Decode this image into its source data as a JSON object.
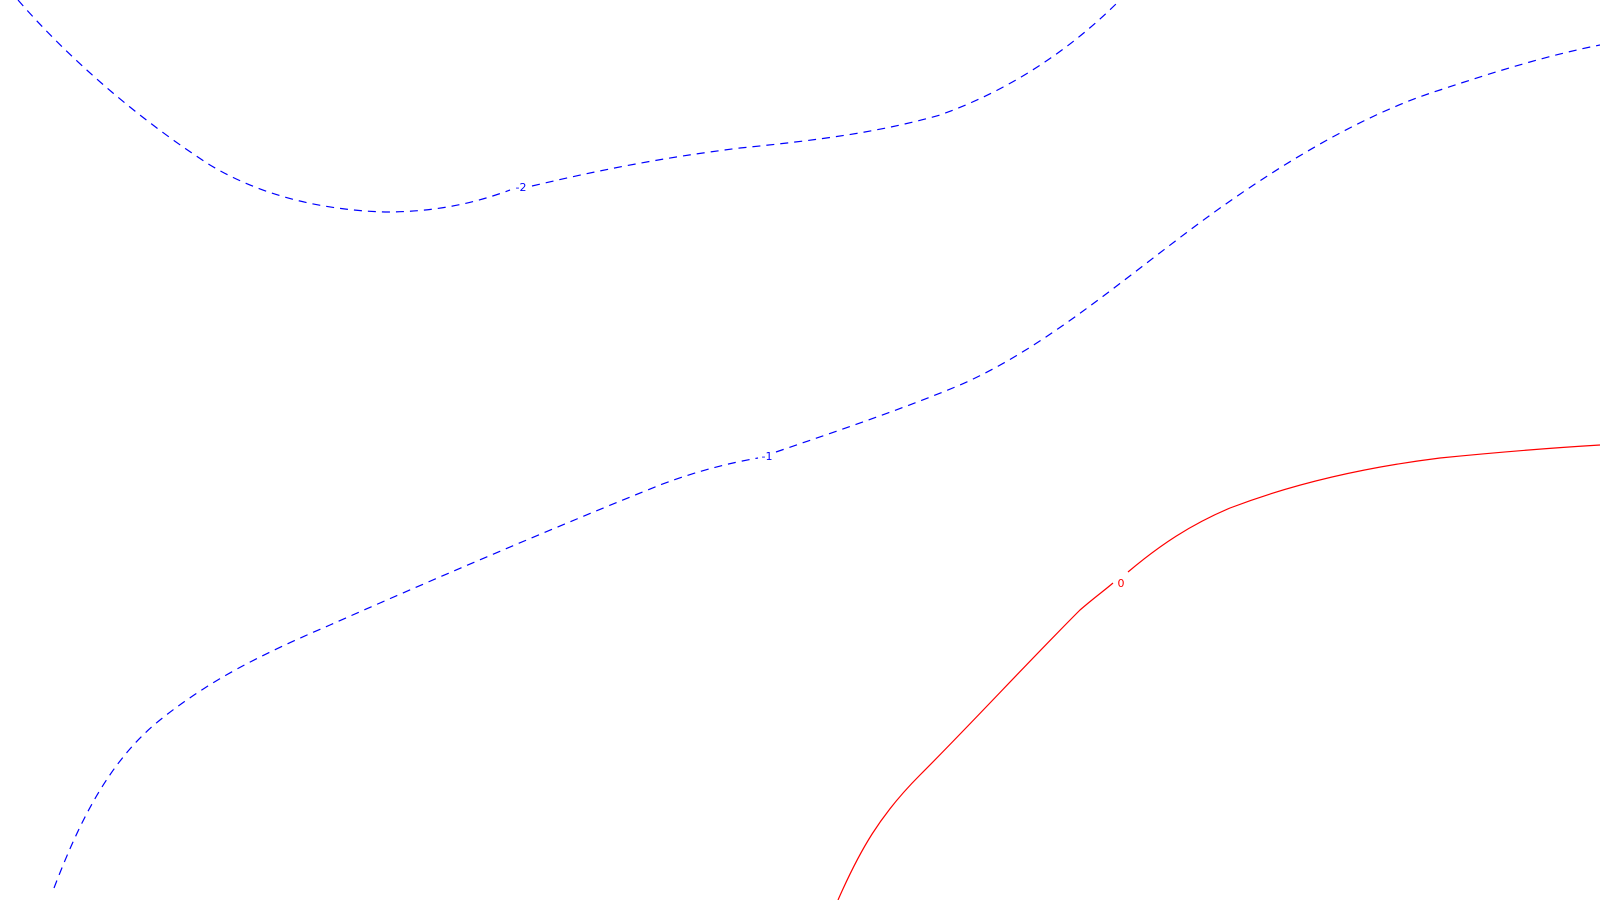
{
  "contours": [
    {
      "id": "contour-minus-2",
      "label": "-2",
      "color": "#0000ff",
      "style": "dashed"
    },
    {
      "id": "contour-minus-1",
      "label": "-1",
      "color": "#0000ff",
      "style": "dashed"
    },
    {
      "id": "contour-0",
      "label": "0",
      "color": "#ff0000",
      "style": "solid"
    }
  ]
}
